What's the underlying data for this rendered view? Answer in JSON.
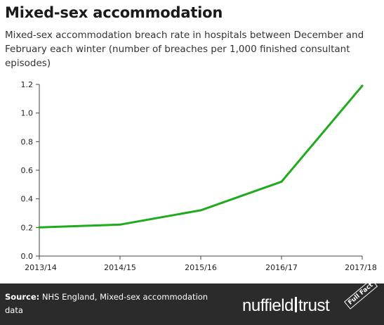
{
  "title": "Mixed-sex accommodation",
  "subtitle": "Mixed-sex accommodation breach rate in hospitals between December and February each winter (number of breaches per 1,000 finished consultant episodes)",
  "footer": {
    "source_label": "Source:",
    "source_text": "NHS England, Mixed-sex accommodation data",
    "logo_text_left": "nuffield",
    "logo_text_right": "trust",
    "badge_text": "Full Fact"
  },
  "colors": {
    "line": "#1faa1f",
    "footer_bg": "#2b2b2b"
  },
  "chart_data": {
    "type": "line",
    "categories": [
      "2013/14",
      "2014/15",
      "2015/16",
      "2016/17",
      "2017/18"
    ],
    "series": [
      {
        "values": [
          0.2,
          0.22,
          0.32,
          0.52,
          1.19
        ]
      }
    ],
    "yticks": [
      0,
      0.2,
      0.4,
      0.6,
      0.8,
      1.0,
      1.2
    ],
    "ytick_labels": [
      "0.0",
      "0.2",
      "0.4",
      "0.6",
      "0.8",
      "1.0",
      "1.2"
    ],
    "ylim": [
      0,
      1.2
    ],
    "xlabel": "",
    "ylabel": "",
    "grid": false
  }
}
